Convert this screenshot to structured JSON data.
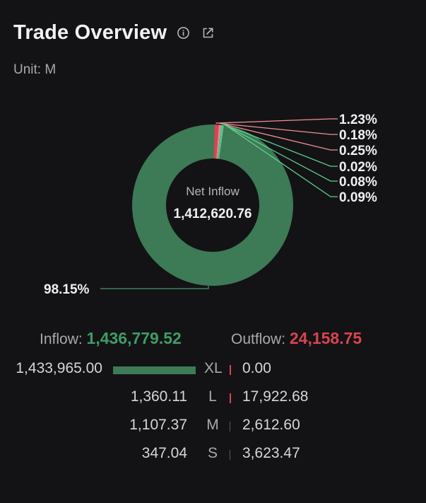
{
  "header": {
    "title": "Trade Overview",
    "info_icon": "info-icon",
    "share_icon": "share-icon"
  },
  "unit": "Unit: M",
  "center": {
    "label": "Net Inflow",
    "value": "1,412,620.76"
  },
  "colors": {
    "inflow": "#3d7a56",
    "inflow_text": "#3f9c65",
    "outflow": "#d84451",
    "outflow_light": "#ef8f96",
    "inflow_light": "#5fcf8e"
  },
  "chart_data": {
    "type": "pie",
    "donut": true,
    "slices": [
      {
        "label": "1.23%",
        "value": 1.23,
        "side": "outflow",
        "size": "L"
      },
      {
        "label": "0.18%",
        "value": 0.18,
        "side": "outflow",
        "size": "M"
      },
      {
        "label": "0.25%",
        "value": 0.25,
        "side": "outflow",
        "size": "S"
      },
      {
        "label": "0.02%",
        "value": 0.02,
        "side": "inflow",
        "size": "S"
      },
      {
        "label": "0.08%",
        "value": 0.08,
        "side": "inflow",
        "size": "M"
      },
      {
        "label": "0.09%",
        "value": 0.09,
        "side": "inflow",
        "size": "L"
      },
      {
        "label": "98.15%",
        "value": 98.15,
        "side": "inflow",
        "size": "XL"
      }
    ]
  },
  "summary": {
    "inflow_label": "Inflow: ",
    "inflow_value": "1,436,779.52",
    "outflow_label": "Outflow: ",
    "outflow_value": "24,158.75"
  },
  "rows": [
    {
      "size": "XL",
      "inflow": "1,433,965.00",
      "outflow": "0.00",
      "inflow_bar": 1.0,
      "outflow_bar": 0.0
    },
    {
      "size": "L",
      "inflow": "1,360.11",
      "outflow": "17,922.68",
      "inflow_bar": 0.0009,
      "outflow_bar": 0.0125
    },
    {
      "size": "M",
      "inflow": "1,107.37",
      "outflow": "2,612.60",
      "inflow_bar": 0.0008,
      "outflow_bar": 0.0018
    },
    {
      "size": "S",
      "inflow": "347.04",
      "outflow": "3,623.47",
      "inflow_bar": 0.0002,
      "outflow_bar": 0.0025
    }
  ]
}
